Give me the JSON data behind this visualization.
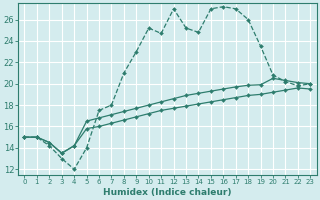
{
  "xlabel": "Humidex (Indice chaleur)",
  "bg_color": "#d4ecee",
  "grid_color": "#ffffff",
  "line_color": "#2e7d6e",
  "ylim": [
    11.5,
    27.5
  ],
  "xlim": [
    -0.5,
    23.5
  ],
  "yticks": [
    12,
    14,
    16,
    18,
    20,
    22,
    24,
    26
  ],
  "xticks": [
    0,
    1,
    2,
    3,
    4,
    5,
    6,
    7,
    8,
    9,
    10,
    11,
    12,
    13,
    14,
    15,
    16,
    17,
    18,
    19,
    20,
    21,
    22,
    23
  ],
  "line1_x": [
    0,
    1,
    2,
    3,
    4,
    5,
    6,
    7,
    8,
    9,
    10,
    11,
    12,
    13,
    14,
    15,
    16,
    17,
    18,
    19,
    20,
    21,
    22,
    23
  ],
  "line1_y": [
    15.0,
    15.0,
    14.2,
    13.0,
    12.0,
    14.0,
    17.5,
    18.0,
    21.0,
    23.0,
    25.2,
    24.7,
    27.0,
    25.2,
    24.8,
    27.0,
    27.2,
    27.0,
    26.0,
    23.5,
    20.8,
    20.2,
    19.8,
    20.0
  ],
  "line2_x": [
    0,
    1,
    2,
    3,
    4,
    5,
    6,
    7,
    8,
    9,
    10,
    11,
    12,
    13,
    14,
    15,
    16,
    17,
    18,
    19,
    20,
    21,
    22,
    23
  ],
  "line2_y": [
    15.0,
    15.0,
    14.5,
    13.5,
    14.2,
    16.5,
    16.8,
    17.1,
    17.4,
    17.7,
    18.0,
    18.3,
    18.6,
    18.9,
    19.1,
    19.3,
    19.5,
    19.7,
    19.85,
    19.9,
    20.5,
    20.3,
    20.1,
    20.0
  ],
  "line3_x": [
    0,
    1,
    2,
    3,
    4,
    5,
    6,
    7,
    8,
    9,
    10,
    11,
    12,
    13,
    14,
    15,
    16,
    17,
    18,
    19,
    20,
    21,
    22,
    23
  ],
  "line3_y": [
    15.0,
    15.0,
    14.5,
    13.5,
    14.2,
    15.8,
    16.0,
    16.3,
    16.6,
    16.9,
    17.2,
    17.5,
    17.7,
    17.9,
    18.1,
    18.3,
    18.5,
    18.7,
    18.9,
    19.0,
    19.2,
    19.4,
    19.6,
    19.5
  ],
  "ytick_fontsize": 6,
  "xtick_fontsize": 5,
  "xlabel_fontsize": 6.5
}
